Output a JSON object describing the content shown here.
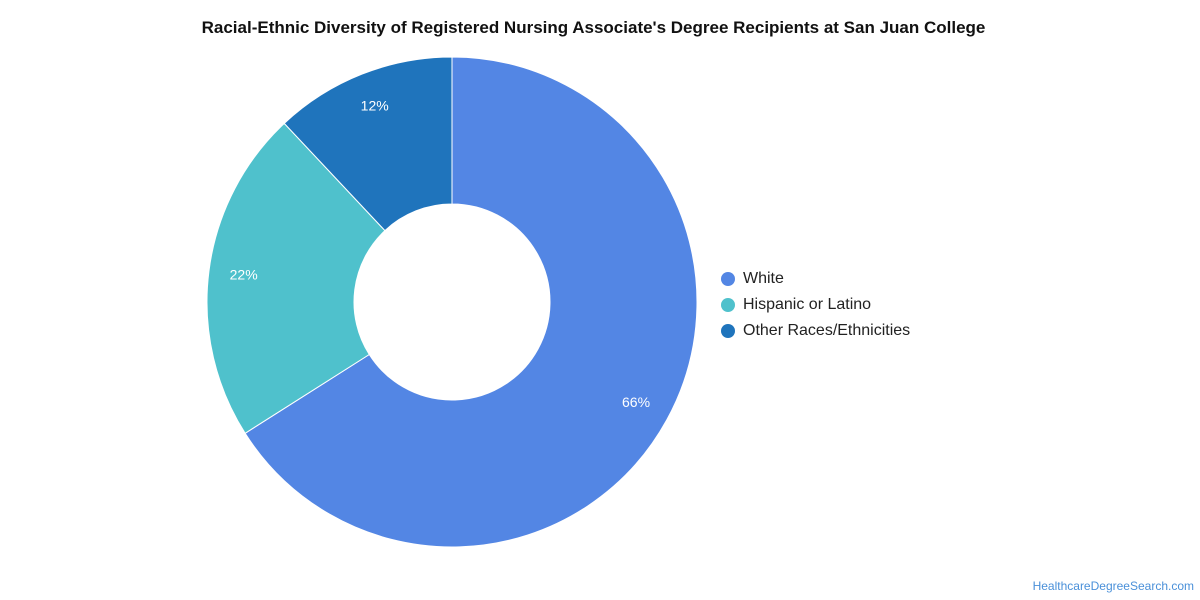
{
  "chart_data": {
    "type": "pie",
    "variant": "donut",
    "title": "Racial-Ethnic Diversity of Registered Nursing Associate's Degree Recipients at San Juan College",
    "categories": [
      "White",
      "Hispanic or Latino",
      "Other Races/Ethnicities"
    ],
    "values": [
      66,
      22,
      12
    ],
    "value_labels": [
      "66%",
      "22%",
      "12%"
    ],
    "colors": [
      "#5386e4",
      "#4fc1cc",
      "#1f74bc"
    ],
    "legend_position": "right"
  },
  "source_credit": "HealthcareDegreeSearch.com"
}
